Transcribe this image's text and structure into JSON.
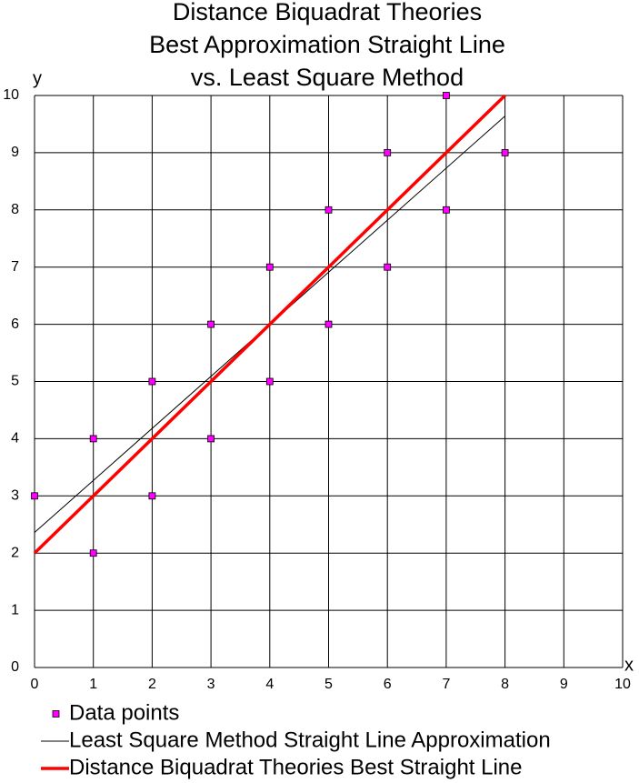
{
  "chart_data": {
    "type": "scatter",
    "title": [
      "Distance Biquadrat Theories",
      "Best Approximation Straight Line",
      "vs. Least Square Method"
    ],
    "x_label": "x",
    "y_label": "y",
    "xlim": [
      0,
      10
    ],
    "ylim": [
      0,
      10
    ],
    "xticks": [
      0,
      1,
      2,
      3,
      4,
      5,
      6,
      7,
      8,
      9,
      10
    ],
    "yticks": [
      0,
      1,
      2,
      3,
      4,
      5,
      6,
      7,
      8,
      9,
      10
    ],
    "grid": true,
    "series": [
      {
        "name": "Data points",
        "color": "#ff00ff",
        "mode": "markers",
        "x": [
          0,
          1,
          1,
          2,
          2,
          3,
          3,
          4,
          4,
          5,
          5,
          6,
          6,
          7,
          7,
          8
        ],
        "values": [
          3,
          2,
          4,
          3,
          5,
          4,
          6,
          5,
          7,
          6,
          8,
          7,
          9,
          8,
          10,
          9
        ]
      },
      {
        "name": "Least Square Method Straight Line Approximation",
        "color": "#000000",
        "mode": "line",
        "x": [
          0,
          8
        ],
        "values": [
          2.36,
          9.64
        ]
      },
      {
        "name": "Distance Biquadrat Theories Best Straight Line",
        "color": "#ff0000",
        "mode": "line",
        "x": [
          0,
          8
        ],
        "values": [
          2,
          10
        ]
      }
    ]
  }
}
